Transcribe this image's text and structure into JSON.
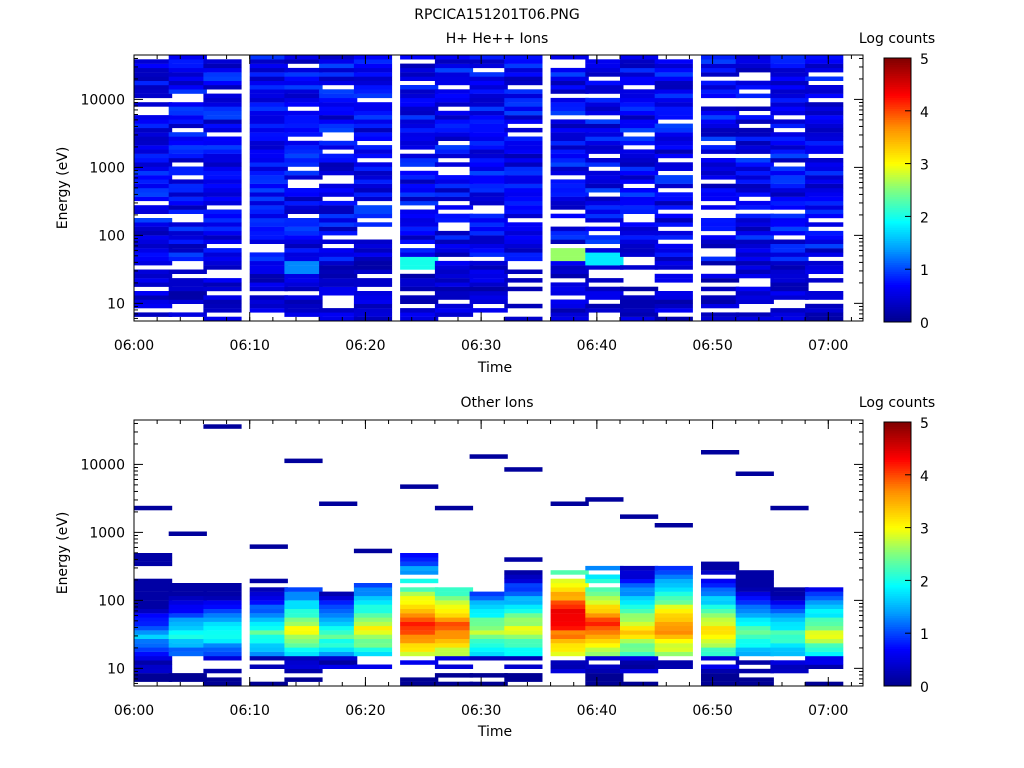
{
  "figure_title": "RPCICA151201T06.PNG",
  "chart_data": [
    {
      "type": "heatmap",
      "title": "H+ He++ Ions",
      "xlabel": "Time",
      "ylabel": "Energy (eV)",
      "y_scale": "log",
      "ylim": [
        5.5,
        45000
      ],
      "xlim": [
        "06:00",
        "07:03"
      ],
      "x_ticks": [
        "06:00",
        "06:10",
        "06:20",
        "06:30",
        "06:40",
        "06:50",
        "07:00"
      ],
      "y_ticks": [
        "10",
        "100",
        "1000",
        "10000"
      ],
      "colorbar": {
        "label": "Log counts",
        "range": [
          0,
          5
        ],
        "ticks": [
          "0",
          "1",
          "2",
          "3",
          "4",
          "5"
        ]
      },
      "time_bins": [
        "06:00",
        "06:03",
        "06:06",
        "06:10",
        "06:13",
        "06:16",
        "06:19",
        "06:23",
        "06:26",
        "06:29",
        "06:32",
        "06:36",
        "06:39",
        "06:42",
        "06:45",
        "06:49",
        "06:52",
        "06:55",
        "06:58"
      ],
      "low_energy_peaks": [
        {
          "time": "06:13",
          "energy_ev": 35,
          "log_counts": 1.3
        },
        {
          "time": "06:23",
          "energy_ev": 40,
          "log_counts": 2.0
        },
        {
          "time": "06:36",
          "energy_ev": 55,
          "log_counts": 2.6
        },
        {
          "time": "06:39",
          "energy_ev": 45,
          "log_counts": 1.8
        }
      ],
      "note_levels": {
        "bulk_log_counts": 0.6
      }
    },
    {
      "type": "heatmap",
      "title": "Other Ions",
      "xlabel": "Time",
      "ylabel": "Energy (eV)",
      "y_scale": "log",
      "ylim": [
        5.5,
        45000
      ],
      "xlim": [
        "06:00",
        "07:03"
      ],
      "x_ticks": [
        "06:00",
        "06:10",
        "06:20",
        "06:30",
        "06:40",
        "06:50",
        "07:00"
      ],
      "y_ticks": [
        "10",
        "100",
        "1000",
        "10000"
      ],
      "colorbar": {
        "label": "Log counts",
        "range": [
          0,
          5
        ],
        "ticks": [
          "0",
          "1",
          "2",
          "3",
          "4",
          "5"
        ]
      },
      "time_bins": [
        "06:00",
        "06:03",
        "06:06",
        "06:10",
        "06:13",
        "06:16",
        "06:19",
        "06:23",
        "06:26",
        "06:29",
        "06:32",
        "06:36",
        "06:39",
        "06:42",
        "06:45",
        "06:49",
        "06:52",
        "06:55",
        "06:58"
      ],
      "peak_log_counts": [
        1.6,
        2.0,
        2.1,
        2.3,
        3.0,
        2.4,
        3.1,
        4.2,
        4.0,
        2.8,
        3.0,
        4.6,
        4.1,
        3.3,
        3.8,
        3.2,
        2.5,
        2.3,
        2.9
      ],
      "peak_energy_ev": [
        30,
        32,
        34,
        33,
        36,
        30,
        38,
        42,
        40,
        36,
        38,
        55,
        45,
        36,
        40,
        35,
        33,
        30,
        32
      ],
      "upper_energy_ev": [
        520,
        180,
        180,
        200,
        170,
        130,
        190,
        480,
        160,
        130,
        420,
        330,
        300,
        330,
        370,
        420,
        260,
        160,
        160
      ],
      "sparse_high_energy_ev": [
        2300,
        950,
        37000,
        640,
        11000,
        2800,
        530,
        4400,
        2400,
        13000,
        8700,
        2800,
        2900,
        1600,
        1300,
        15500,
        7600,
        2200
      ]
    }
  ]
}
